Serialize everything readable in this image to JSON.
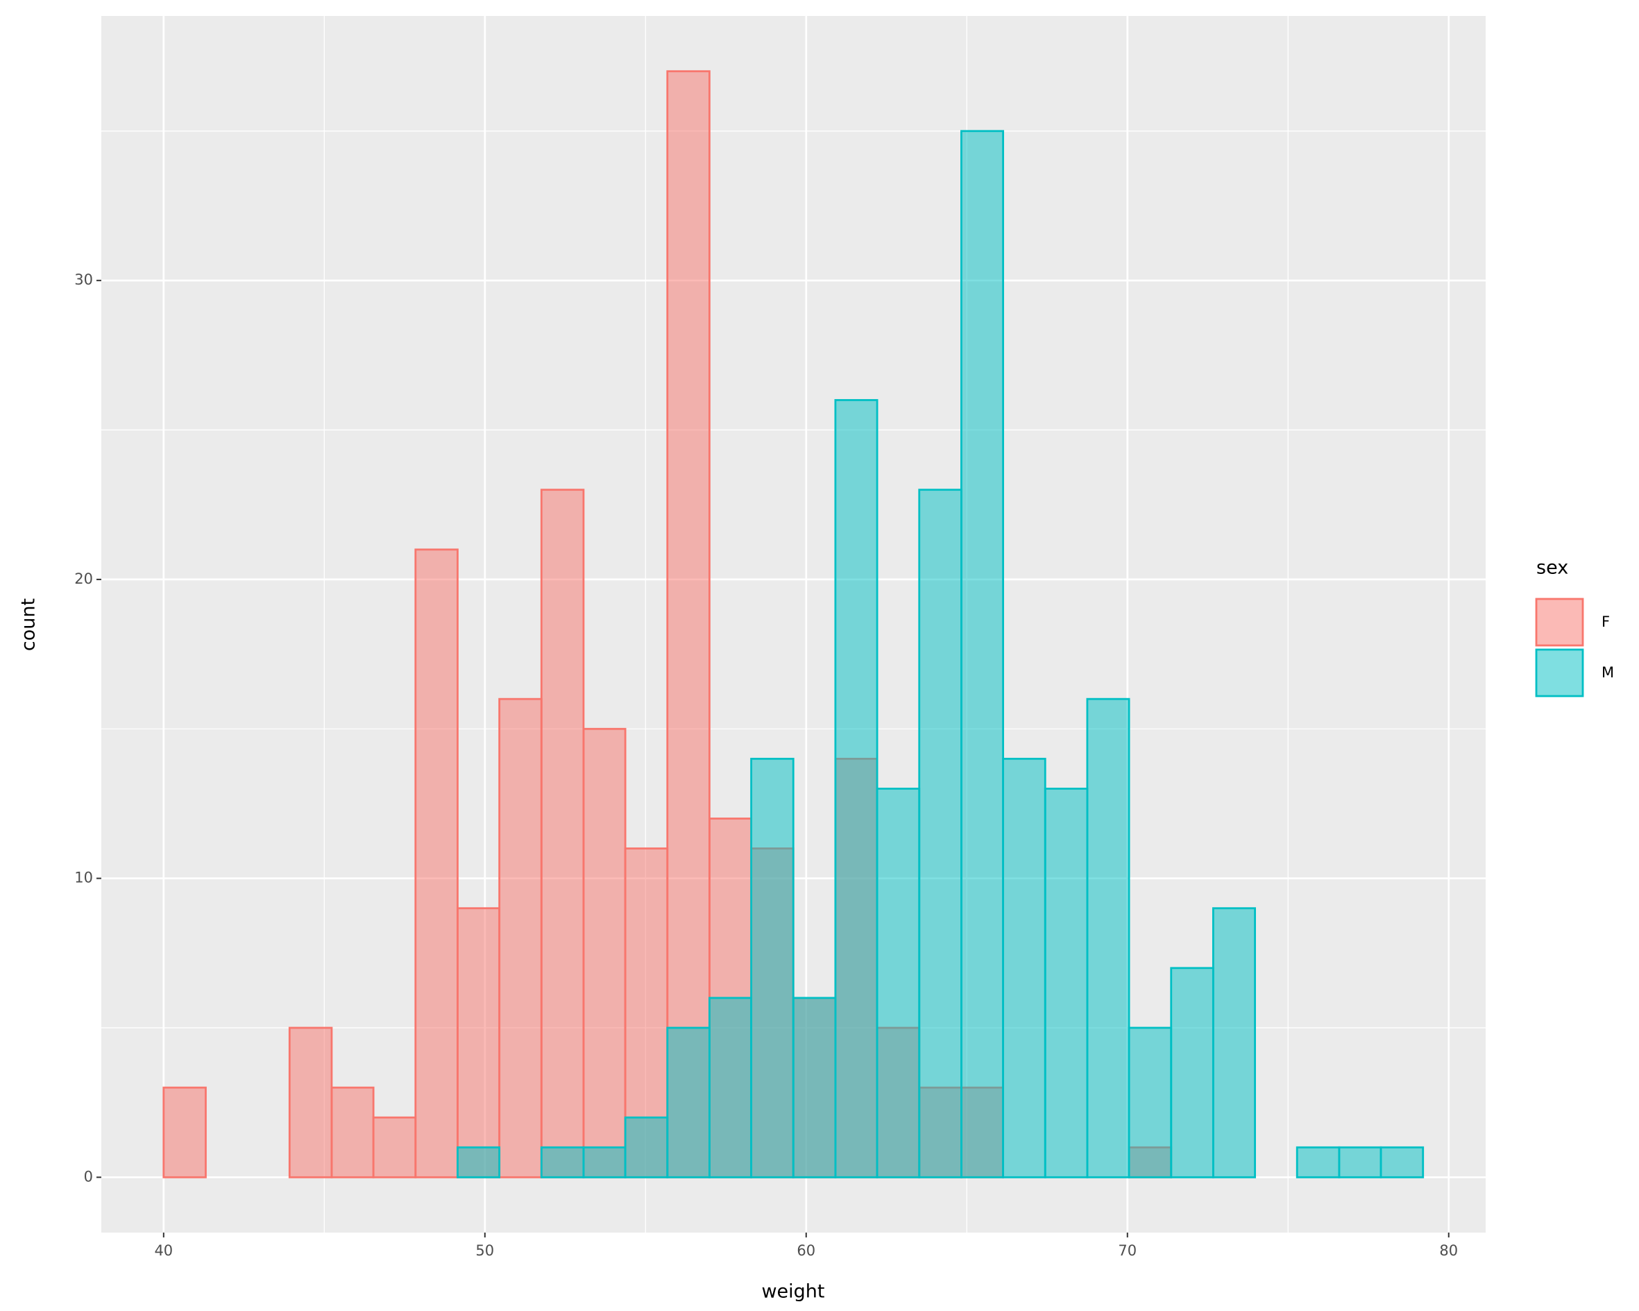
{
  "chart_data": {
    "type": "histogram",
    "x_label": "weight",
    "y_label": "count",
    "bins": [
      40,
      41.31,
      42.61,
      43.92,
      45.23,
      46.53,
      47.84,
      49.15,
      50.45,
      51.76,
      53.07,
      54.37,
      55.68,
      56.99,
      58.29,
      59.6,
      60.91,
      62.21,
      63.52,
      64.83,
      66.13,
      67.44,
      68.75,
      70.05,
      71.36,
      72.67,
      73.97,
      75.28,
      76.59,
      77.89,
      79.2
    ],
    "series": [
      {
        "name": "F",
        "color": "#F8766D",
        "values": [
          3,
          0,
          0,
          5,
          3,
          2,
          21,
          9,
          16,
          23,
          15,
          11,
          37,
          12,
          11,
          6,
          14,
          5,
          3,
          3,
          0,
          0,
          0,
          1,
          0,
          0,
          0,
          0,
          0,
          0
        ]
      },
      {
        "name": "M",
        "color": "#00BFC4",
        "values": [
          0,
          0,
          0,
          0,
          0,
          0,
          0,
          1,
          0,
          1,
          1,
          2,
          5,
          6,
          14,
          6,
          26,
          13,
          23,
          35,
          14,
          13,
          16,
          5,
          7,
          9,
          0,
          1,
          1,
          1
        ]
      }
    ],
    "fill_opacity": 0.5,
    "legend_title": "sex",
    "legend_position": "right",
    "xlim": [
      38.06,
      81.15
    ],
    "ylim": [
      -1.85,
      38.85
    ],
    "xticks": [
      40,
      50,
      60,
      70,
      80
    ],
    "yticks": [
      0,
      10,
      20,
      30
    ],
    "minor_xticks": [
      45,
      55,
      65,
      75
    ],
    "minor_yticks": [
      5,
      15,
      25,
      35
    ],
    "grid": true
  }
}
